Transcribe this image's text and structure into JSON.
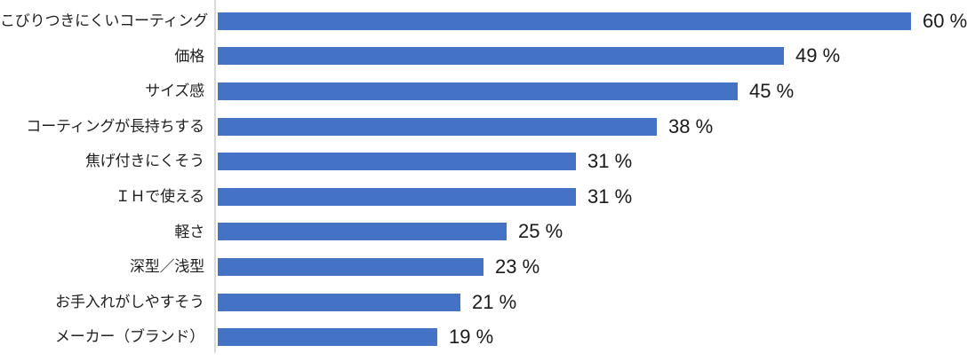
{
  "chart_data": {
    "type": "bar",
    "orientation": "horizontal",
    "title": "",
    "xlabel": "",
    "ylabel": "",
    "grid": false,
    "legend": false,
    "xlim": [
      0,
      65.5
    ],
    "bar_color": "#4472C4",
    "axis_line_color": "#D9D9D9",
    "text_color": "#1f1f1f",
    "categories": [
      "こびりつきにくいコーティング",
      "価格",
      "サイズ感",
      "コーティングが長持ちする",
      "焦げ付きにくそう",
      "ＩＨで使える",
      "軽さ",
      "深型／浅型",
      "お手入れがしやすそう",
      "メーカー（ブランド）"
    ],
    "values": [
      60,
      49,
      45,
      38,
      31,
      31,
      25,
      23,
      21,
      19
    ],
    "value_labels": [
      "60 %",
      "49 %",
      "45 %",
      "38 %",
      "31 %",
      "31 %",
      "25 %",
      "23 %",
      "21 %",
      "19 %"
    ]
  }
}
